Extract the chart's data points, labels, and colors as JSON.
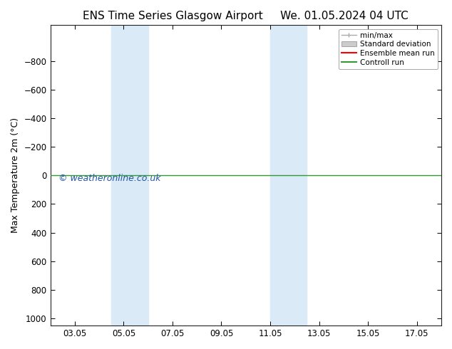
{
  "title": "ENS Time Series Glasgow Airport     We. 01.05.2024 04 UTC",
  "ylabel": "Max Temperature 2m (°C)",
  "ylim_bottom": 1050,
  "ylim_top": -1050,
  "yticks": [
    -800,
    -600,
    -400,
    -200,
    0,
    200,
    400,
    600,
    800,
    1000
  ],
  "xlim": [
    2.0,
    18.0
  ],
  "xtick_positions": [
    3,
    5,
    7,
    9,
    11,
    13,
    15,
    17
  ],
  "xtick_labels": [
    "03.05",
    "05.05",
    "07.05",
    "09.05",
    "11.05",
    "13.05",
    "15.05",
    "17.05"
  ],
  "shade_bands": [
    {
      "xmin": 4.5,
      "xmax": 6.0
    },
    {
      "xmin": 11.0,
      "xmax": 12.5
    }
  ],
  "shade_color": "#daeaf7",
  "green_line_y": 0,
  "green_line_color": "#339933",
  "red_line_color": "#ff0000",
  "watermark": "© weatheronline.co.uk",
  "watermark_color": "#2255aa",
  "background_color": "#ffffff",
  "legend_items": [
    "min/max",
    "Standard deviation",
    "Ensemble mean run",
    "Controll run"
  ],
  "title_fontsize": 11,
  "axis_fontsize": 9,
  "tick_fontsize": 8.5
}
